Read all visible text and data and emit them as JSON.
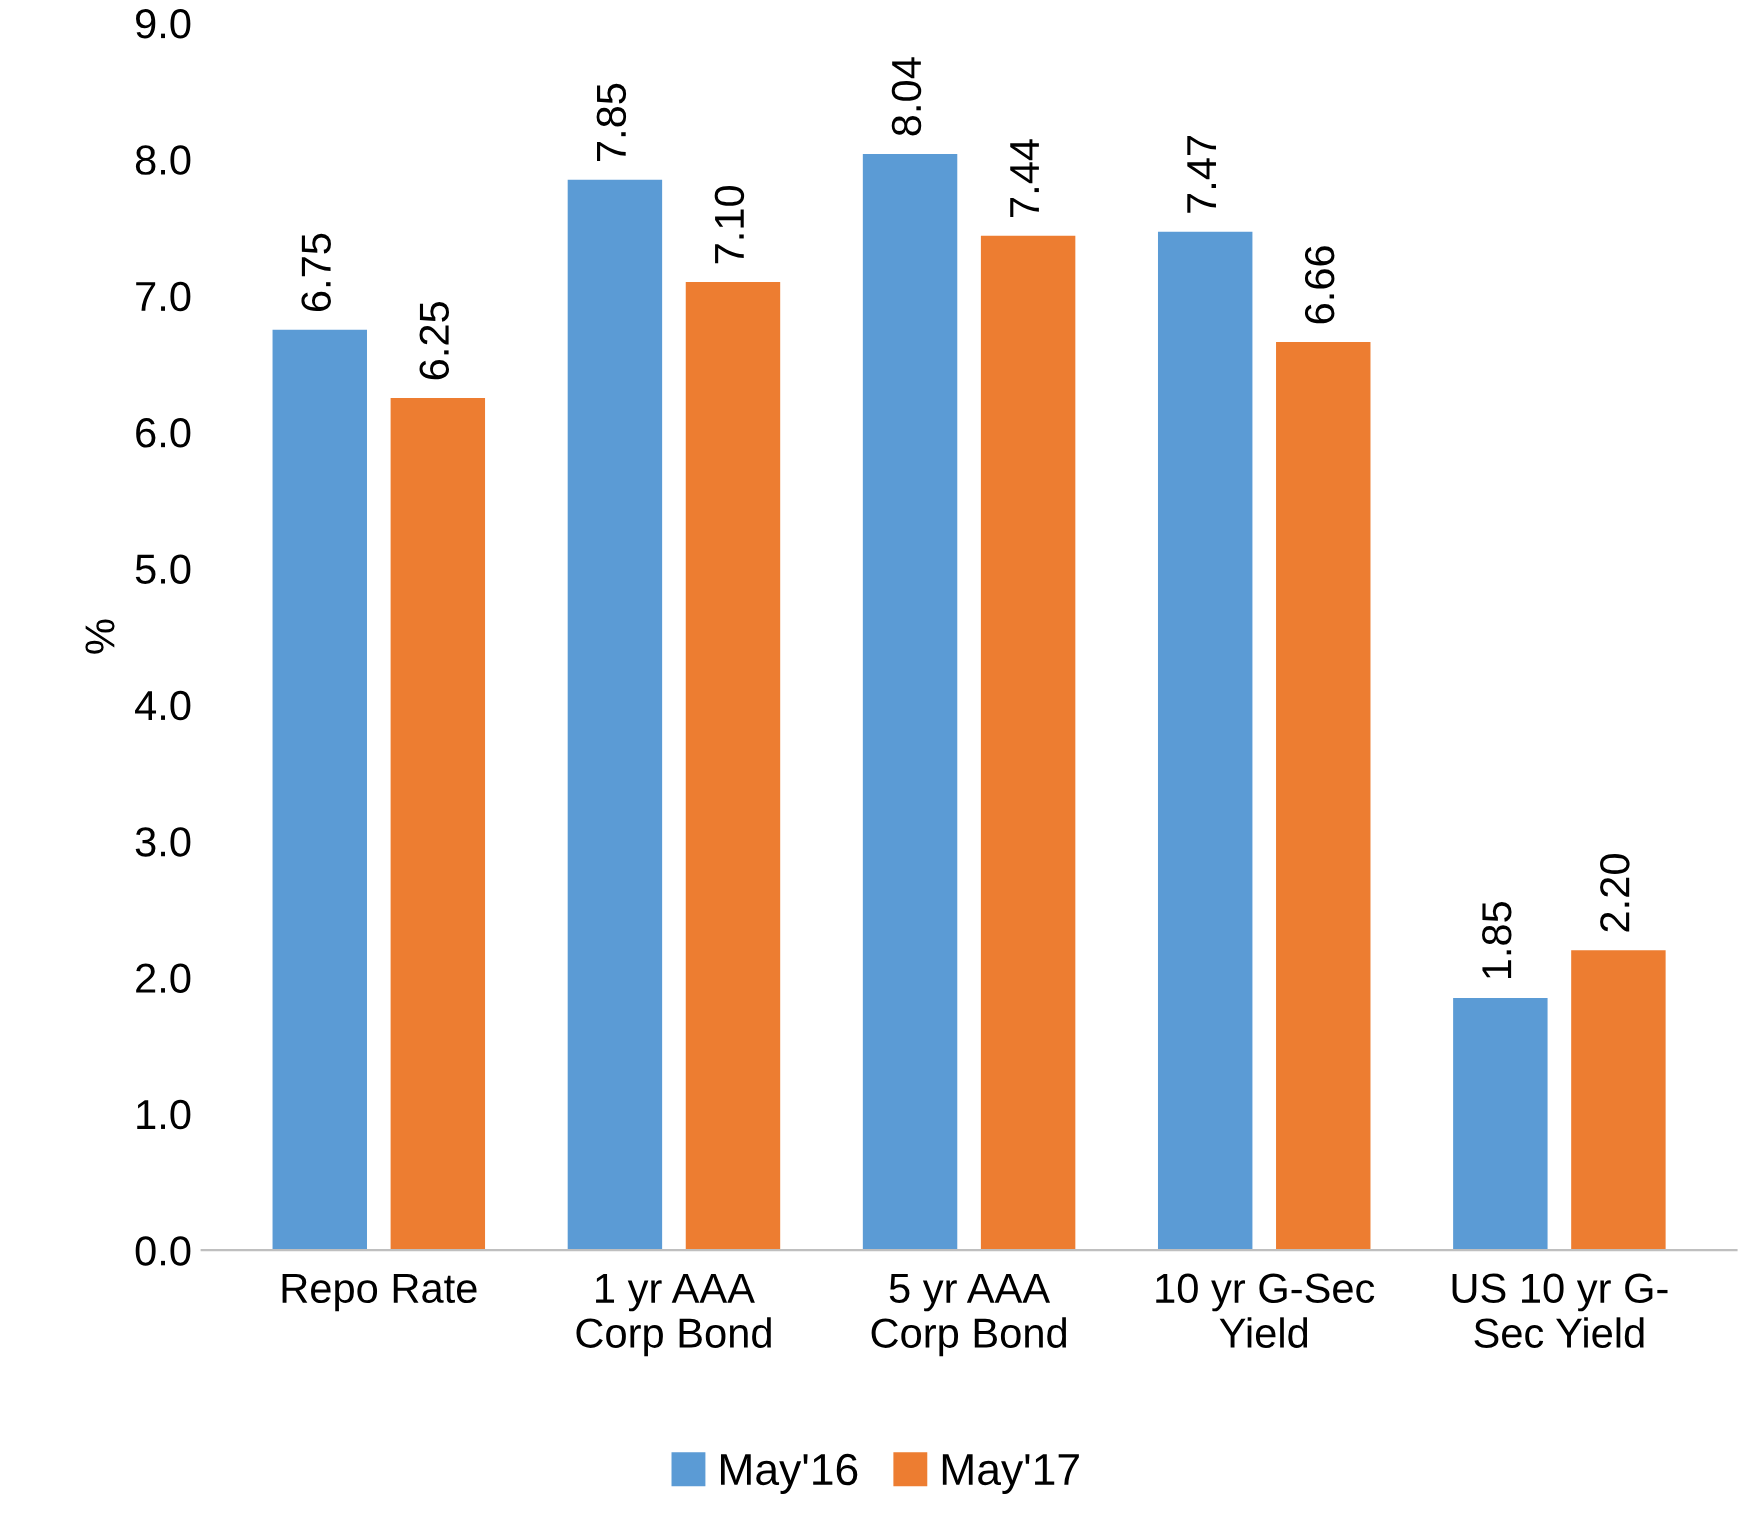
{
  "chart_data": {
    "type": "bar",
    "ylabel": "%",
    "categories": [
      "Repo Rate",
      "1 yr AAA\nCorp Bond",
      "5 yr AAA\nCorp Bond",
      "10 yr G-Sec\nYield",
      "US 10 yr G-\nSec Yield"
    ],
    "series": [
      {
        "name": "May'16",
        "color": "#5b9bd5",
        "values": [
          6.75,
          7.85,
          8.04,
          7.47,
          1.85
        ],
        "value_labels": [
          "6.75",
          "7.85",
          "8.04",
          "7.47",
          "1.85"
        ]
      },
      {
        "name": "May'17",
        "color": "#ed7d31",
        "values": [
          6.25,
          7.1,
          7.44,
          6.66,
          2.2
        ],
        "value_labels": [
          "6.25",
          "7.10",
          "7.44",
          "6.66",
          "2.20"
        ]
      }
    ],
    "ylim": [
      0.0,
      9.0
    ],
    "yticks": [
      {
        "value": 0,
        "label": "0.0"
      },
      {
        "value": 1,
        "label": "1.0"
      },
      {
        "value": 2,
        "label": "2.0"
      },
      {
        "value": 3,
        "label": "3.0"
      },
      {
        "value": 4,
        "label": "4.0"
      },
      {
        "value": 5,
        "label": "5.0"
      },
      {
        "value": 6,
        "label": "6.0"
      },
      {
        "value": 7,
        "label": "7.0"
      },
      {
        "value": 8,
        "label": "8.0"
      },
      {
        "value": 9,
        "label": "9.0"
      }
    ],
    "grid": false,
    "legend": "bottom"
  }
}
